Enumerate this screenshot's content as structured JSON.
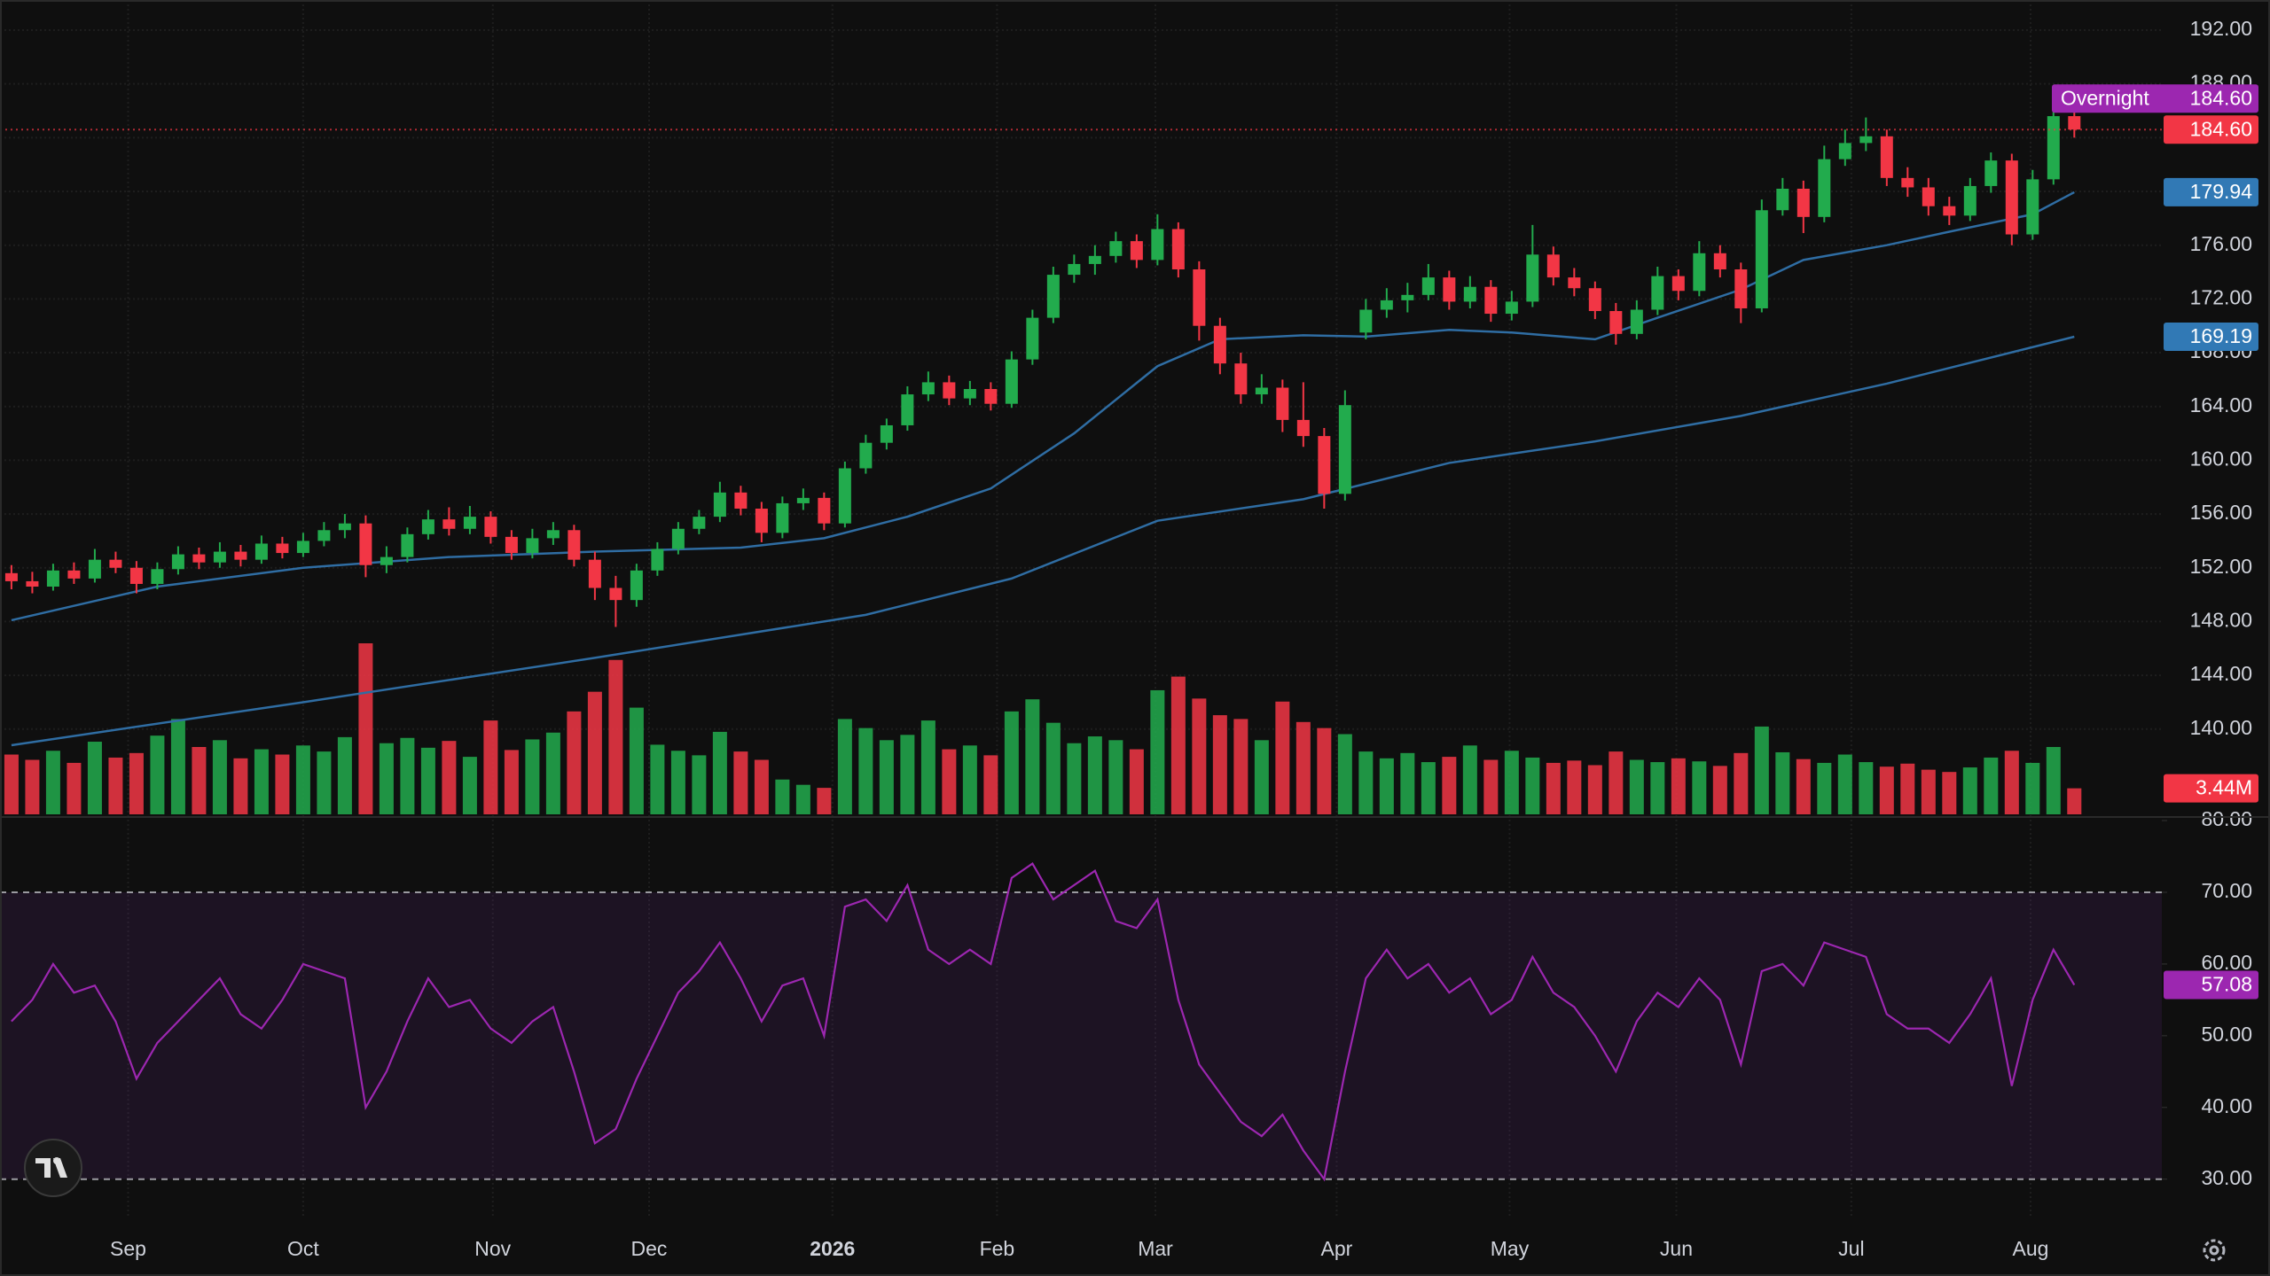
{
  "chart_data": [
    {
      "type": "candlestick",
      "xlim": [
        -0.55,
        103.2
      ],
      "ylim": [
        133.46,
        194.24
      ],
      "yticks": [
        {
          "value": 140,
          "label": "140.00"
        },
        {
          "value": 144,
          "label": "144.00"
        },
        {
          "value": 148,
          "label": "148.00"
        },
        {
          "value": 152,
          "label": "152.00"
        },
        {
          "value": 156,
          "label": "156.00"
        },
        {
          "value": 160,
          "label": "160.00"
        },
        {
          "value": 164,
          "label": "164.00"
        },
        {
          "value": 168,
          "label": "168.00"
        },
        {
          "value": 172,
          "label": "172.00"
        },
        {
          "value": 176,
          "label": "176.00"
        },
        {
          "value": 180,
          "label": "180.00"
        },
        {
          "value": 184,
          "label": "184.00"
        },
        {
          "value": 188,
          "label": "188.00"
        },
        {
          "value": 192,
          "label": "192.00"
        }
      ],
      "grid": true,
      "up_color": "#22ab4d",
      "down_color": "#f23645",
      "candles": [
        [
          151.6,
          152.2,
          150.4,
          151.0
        ],
        [
          151.0,
          151.7,
          150.1,
          150.6
        ],
        [
          150.6,
          152.3,
          150.3,
          151.8
        ],
        [
          151.8,
          152.4,
          150.8,
          151.2
        ],
        [
          151.2,
          153.4,
          150.9,
          152.6
        ],
        [
          152.6,
          153.2,
          151.6,
          152.0
        ],
        [
          152.0,
          152.5,
          150.1,
          150.8
        ],
        [
          150.8,
          152.4,
          150.4,
          151.9
        ],
        [
          151.9,
          153.6,
          151.5,
          153.0
        ],
        [
          153.0,
          153.5,
          151.9,
          152.4
        ],
        [
          152.4,
          153.9,
          152.0,
          153.2
        ],
        [
          153.2,
          153.7,
          152.1,
          152.6
        ],
        [
          152.6,
          154.4,
          152.3,
          153.8
        ],
        [
          153.8,
          154.3,
          152.7,
          153.1
        ],
        [
          153.1,
          154.6,
          152.8,
          154.0
        ],
        [
          154.0,
          155.4,
          153.6,
          154.8
        ],
        [
          154.8,
          156.0,
          154.2,
          155.3
        ],
        [
          155.3,
          155.9,
          151.3,
          152.2
        ],
        [
          152.2,
          153.6,
          151.6,
          152.8
        ],
        [
          152.8,
          155.0,
          152.4,
          154.5
        ],
        [
          154.5,
          156.3,
          154.1,
          155.6
        ],
        [
          155.6,
          156.5,
          154.4,
          154.9
        ],
        [
          154.9,
          156.6,
          154.5,
          155.8
        ],
        [
          155.8,
          156.2,
          153.8,
          154.3
        ],
        [
          154.3,
          154.8,
          152.6,
          153.1
        ],
        [
          153.1,
          154.9,
          152.7,
          154.2
        ],
        [
          154.2,
          155.4,
          153.7,
          154.8
        ],
        [
          154.8,
          155.2,
          152.1,
          152.6
        ],
        [
          152.6,
          153.2,
          149.6,
          150.5
        ],
        [
          150.5,
          151.4,
          147.6,
          149.6
        ],
        [
          149.6,
          152.3,
          149.1,
          151.8
        ],
        [
          151.8,
          153.9,
          151.4,
          153.4
        ],
        [
          153.4,
          155.4,
          153.0,
          154.9
        ],
        [
          154.9,
          156.3,
          154.5,
          155.8
        ],
        [
          155.8,
          158.4,
          155.4,
          157.6
        ],
        [
          157.6,
          158.1,
          155.9,
          156.4
        ],
        [
          156.4,
          156.9,
          153.9,
          154.6
        ],
        [
          154.6,
          157.3,
          154.2,
          156.8
        ],
        [
          156.8,
          157.9,
          156.3,
          157.2
        ],
        [
          157.2,
          157.6,
          154.8,
          155.3
        ],
        [
          155.3,
          159.9,
          155.0,
          159.4
        ],
        [
          159.4,
          161.9,
          159.0,
          161.3
        ],
        [
          161.3,
          163.1,
          160.8,
          162.6
        ],
        [
          162.6,
          165.5,
          162.2,
          164.9
        ],
        [
          164.9,
          166.6,
          164.4,
          165.8
        ],
        [
          165.8,
          166.3,
          164.1,
          164.6
        ],
        [
          164.6,
          165.9,
          164.1,
          165.3
        ],
        [
          165.3,
          165.8,
          163.7,
          164.2
        ],
        [
          164.2,
          168.1,
          163.9,
          167.5
        ],
        [
          167.5,
          171.2,
          167.1,
          170.6
        ],
        [
          170.6,
          174.4,
          170.2,
          173.8
        ],
        [
          173.8,
          175.3,
          173.2,
          174.6
        ],
        [
          174.6,
          176.0,
          173.8,
          175.2
        ],
        [
          175.2,
          177.0,
          174.7,
          176.3
        ],
        [
          176.3,
          176.8,
          174.3,
          174.9
        ],
        [
          174.9,
          178.3,
          174.5,
          177.2
        ],
        [
          177.2,
          177.7,
          173.6,
          174.2
        ],
        [
          174.2,
          174.8,
          168.9,
          170.0
        ],
        [
          170.0,
          170.6,
          166.4,
          167.2
        ],
        [
          167.2,
          168.0,
          164.2,
          164.9
        ],
        [
          164.9,
          166.4,
          164.2,
          165.4
        ],
        [
          165.4,
          166.0,
          162.1,
          163.0
        ],
        [
          163.0,
          165.8,
          161.0,
          161.8
        ],
        [
          161.8,
          162.4,
          156.4,
          157.5
        ],
        [
          157.5,
          165.2,
          157.0,
          164.1
        ],
        [
          169.5,
          172.0,
          169.0,
          171.2
        ],
        [
          171.2,
          172.8,
          170.6,
          171.9
        ],
        [
          171.9,
          173.2,
          171.0,
          172.3
        ],
        [
          172.3,
          174.6,
          171.9,
          173.6
        ],
        [
          173.6,
          174.1,
          171.2,
          171.8
        ],
        [
          171.8,
          173.7,
          171.3,
          172.9
        ],
        [
          172.9,
          173.4,
          170.3,
          170.9
        ],
        [
          170.9,
          172.6,
          170.4,
          171.8
        ],
        [
          171.8,
          177.5,
          171.4,
          175.3
        ],
        [
          175.3,
          175.9,
          173.0,
          173.6
        ],
        [
          173.6,
          174.3,
          172.2,
          172.8
        ],
        [
          172.8,
          173.3,
          170.5,
          171.1
        ],
        [
          171.1,
          171.7,
          168.6,
          169.4
        ],
        [
          169.4,
          171.9,
          169.0,
          171.2
        ],
        [
          171.2,
          174.4,
          170.8,
          173.7
        ],
        [
          173.7,
          174.2,
          171.9,
          172.6
        ],
        [
          172.6,
          176.3,
          172.2,
          175.4
        ],
        [
          175.4,
          176.0,
          173.6,
          174.2
        ],
        [
          174.2,
          174.7,
          170.2,
          171.3
        ],
        [
          171.3,
          179.4,
          171.0,
          178.6
        ],
        [
          178.6,
          181.0,
          178.2,
          180.2
        ],
        [
          180.2,
          180.8,
          176.9,
          178.1
        ],
        [
          178.1,
          183.4,
          177.7,
          182.4
        ],
        [
          182.4,
          184.6,
          181.9,
          183.6
        ],
        [
          183.6,
          185.5,
          183.0,
          184.1
        ],
        [
          184.1,
          184.6,
          180.4,
          181.0
        ],
        [
          181.0,
          181.8,
          179.6,
          180.3
        ],
        [
          180.3,
          181.0,
          178.2,
          178.9
        ],
        [
          178.9,
          179.6,
          177.5,
          178.2
        ],
        [
          178.2,
          181.0,
          177.8,
          180.4
        ],
        [
          180.4,
          182.9,
          179.9,
          182.3
        ],
        [
          182.3,
          182.8,
          176.0,
          176.8
        ],
        [
          176.8,
          181.6,
          176.4,
          180.9
        ],
        [
          180.9,
          186.4,
          180.5,
          185.6
        ],
        [
          185.6,
          186.1,
          184.0,
          184.6
        ]
      ],
      "volume": {
        "values": [
          7.9,
          7.2,
          8.4,
          6.8,
          9.6,
          7.5,
          8.1,
          10.4,
          12.6,
          8.9,
          9.8,
          7.4,
          8.6,
          7.9,
          9.1,
          8.3,
          10.2,
          22.6,
          9.4,
          10.1,
          8.8,
          9.7,
          7.6,
          12.4,
          8.5,
          9.9,
          10.8,
          13.6,
          16.2,
          20.4,
          14.1,
          9.2,
          8.4,
          7.8,
          10.9,
          8.3,
          7.2,
          4.6,
          3.9,
          3.5,
          12.6,
          11.4,
          9.8,
          10.5,
          12.4,
          8.6,
          9.1,
          7.8,
          13.6,
          15.2,
          12.1,
          9.4,
          10.3,
          9.8,
          8.6,
          16.4,
          18.2,
          15.3,
          13.1,
          12.6,
          9.8,
          14.9,
          12.2,
          11.4,
          10.6,
          8.3,
          7.4,
          8.1,
          6.9,
          7.6,
          9.1,
          7.2,
          8.4,
          7.5,
          6.8,
          7.1,
          6.5,
          8.3,
          7.2,
          6.9,
          7.4,
          7.0,
          6.4,
          8.1,
          11.6,
          8.2,
          7.3,
          6.8,
          7.9,
          6.9,
          6.3,
          6.7,
          5.9,
          5.6,
          6.2,
          7.5,
          8.4,
          6.8,
          8.9,
          3.44
        ],
        "last_label": "3.44M"
      },
      "series": [
        {
          "color": "#2f6da3",
          "x": [
            0,
            7,
            14,
            21,
            28,
            35,
            39,
            43,
            47,
            51,
            55,
            58,
            62,
            65,
            69,
            72,
            76,
            79,
            83,
            86,
            90,
            93,
            97,
            99
          ],
          "values": [
            148.1,
            150.6,
            152.0,
            152.8,
            153.2,
            153.5,
            154.2,
            155.8,
            157.9,
            162.0,
            167.0,
            169.0,
            169.3,
            169.2,
            169.7,
            169.5,
            169.0,
            170.6,
            172.7,
            174.9,
            176.0,
            177.0,
            178.3,
            179.94
          ]
        },
        {
          "color": "#2f6da3",
          "x": [
            0,
            14,
            28,
            41,
            48,
            55,
            62,
            69,
            76,
            83,
            90,
            99
          ],
          "values": [
            138.8,
            142.0,
            145.3,
            148.5,
            151.2,
            155.5,
            157.1,
            159.8,
            161.4,
            163.3,
            165.7,
            169.19
          ]
        }
      ],
      "last_price": {
        "value": 184.6,
        "label": "184.60",
        "color": "#f23645"
      },
      "overnight": {
        "name": "Overnight",
        "value": 184.6,
        "label": "184.60",
        "color": "#9c27b0"
      }
    },
    {
      "type": "line",
      "xlim": [
        -0.55,
        103.2
      ],
      "ylim": [
        24.9,
        80.5
      ],
      "yticks": [
        {
          "value": 30,
          "label": "30.00"
        },
        {
          "value": 40,
          "label": "40.00"
        },
        {
          "value": 50,
          "label": "50.00"
        },
        {
          "value": 60,
          "label": "60.00"
        },
        {
          "value": 70,
          "label": "70.00"
        },
        {
          "value": 80,
          "label": "80.00"
        }
      ],
      "band": [
        30,
        70
      ],
      "color": "#9c27b0",
      "values": [
        52,
        55,
        60,
        56,
        57,
        52,
        44,
        49,
        52,
        55,
        58,
        53,
        51,
        55,
        60,
        59,
        58,
        40,
        45,
        52,
        58,
        54,
        55,
        51,
        49,
        52,
        54,
        45,
        35,
        37,
        44,
        50,
        56,
        59,
        63,
        58,
        52,
        57,
        58,
        50,
        68,
        69,
        66,
        71,
        62,
        60,
        62,
        60,
        72,
        74,
        69,
        71,
        73,
        66,
        65,
        69,
        55,
        46,
        42,
        38,
        36,
        39,
        34,
        30,
        45,
        58,
        62,
        58,
        60,
        56,
        58,
        53,
        55,
        61,
        56,
        54,
        50,
        45,
        52,
        56,
        54,
        58,
        55,
        46,
        59,
        60,
        57,
        63,
        62,
        61,
        53,
        51,
        51,
        49,
        53,
        58,
        43,
        55,
        62,
        57.08
      ],
      "xticks": [
        {
          "value": 5.6,
          "label": "Sep"
        },
        {
          "value": 14,
          "label": "Oct"
        },
        {
          "value": 23.1,
          "label": "Nov"
        },
        {
          "value": 30.6,
          "label": "Dec"
        },
        {
          "value": 39.4,
          "label": "2026"
        },
        {
          "value": 47.3,
          "label": "Feb"
        },
        {
          "value": 54.9,
          "label": "Mar"
        },
        {
          "value": 63.6,
          "label": "Apr"
        },
        {
          "value": 71.9,
          "label": "May"
        },
        {
          "value": 79.9,
          "label": "Jun"
        },
        {
          "value": 88.3,
          "label": "Jul"
        },
        {
          "value": 96.9,
          "label": "Aug"
        }
      ]
    }
  ]
}
